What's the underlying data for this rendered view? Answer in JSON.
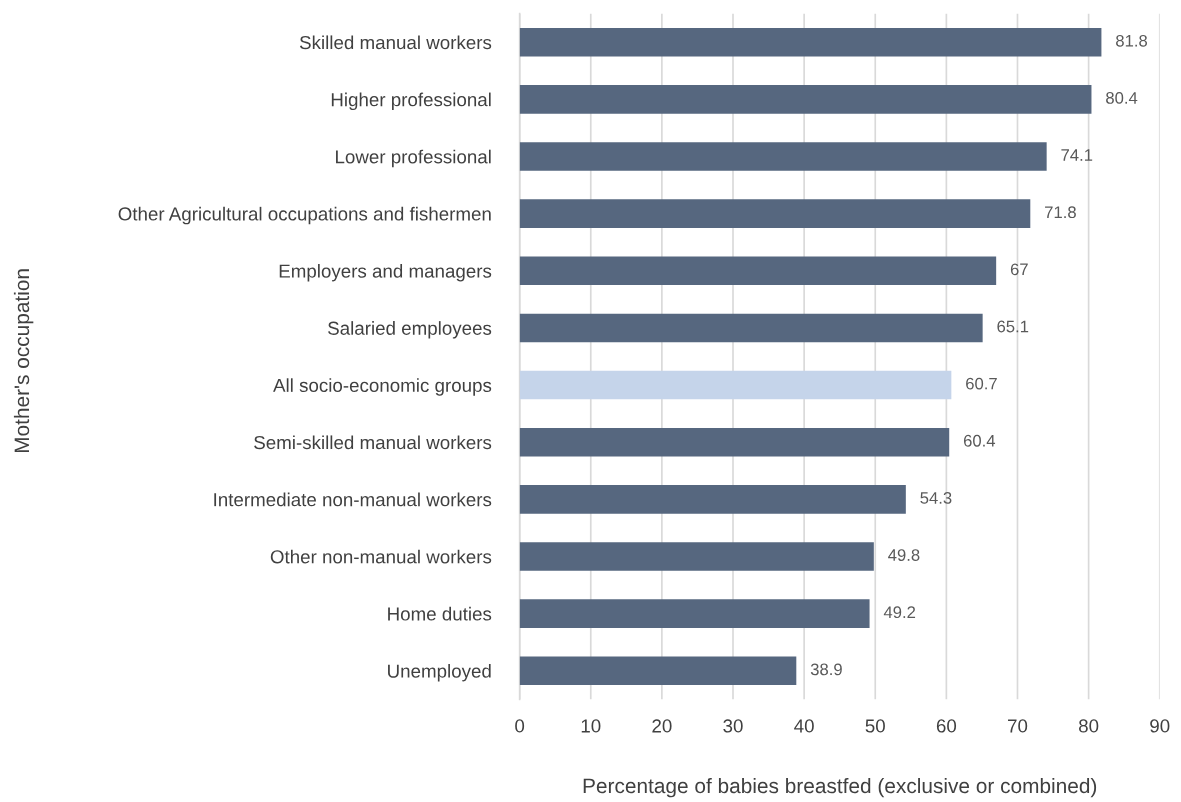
{
  "chart_data": {
    "type": "bar",
    "orientation": "horizontal",
    "xlabel": "Percentage of babies breastfed (exclusive or combined)",
    "ylabel": "Mother's occupation",
    "categories": [
      "Skilled manual workers",
      "Higher professional",
      "Lower professional",
      "Other Agricultural occupations and fishermen",
      "Employers and managers",
      "Salaried employees",
      "All socio-economic groups",
      "Semi-skilled manual workers",
      "Intermediate non-manual workers",
      "Other non-manual workers",
      "Home duties",
      "Unemployed"
    ],
    "values": [
      81.8,
      80.4,
      74.1,
      71.8,
      67,
      65.1,
      60.7,
      60.4,
      54.3,
      49.8,
      49.2,
      38.9
    ],
    "colors": [
      "#56677f",
      "#56677f",
      "#56677f",
      "#56677f",
      "#56677f",
      "#56677f",
      "#c5d4ea",
      "#56677f",
      "#56677f",
      "#56677f",
      "#56677f",
      "#56677f"
    ],
    "xlim": [
      0,
      90
    ],
    "xticks": [
      0,
      10,
      20,
      30,
      40,
      50,
      60,
      70,
      80,
      90
    ],
    "grid": "x",
    "data_labels": true
  }
}
